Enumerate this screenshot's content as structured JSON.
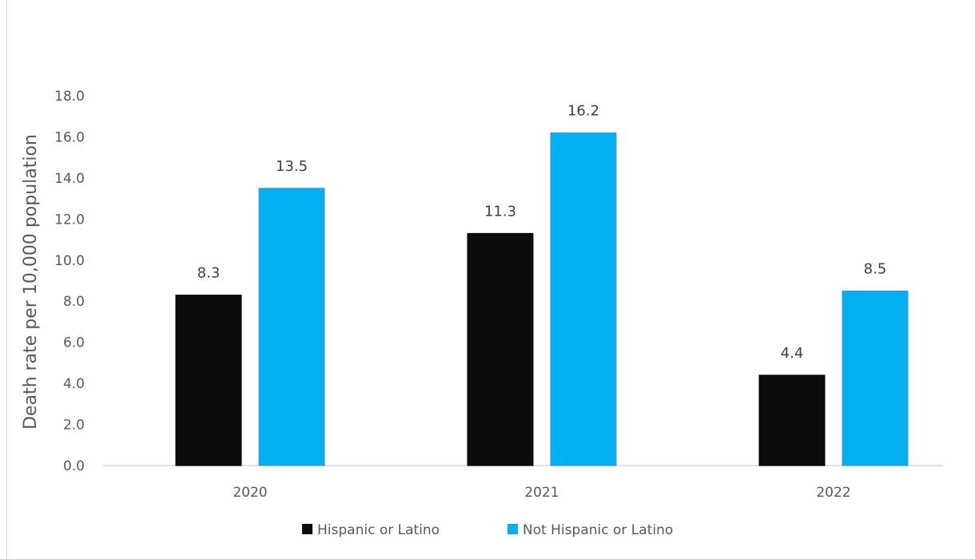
{
  "chart_data": {
    "type": "bar",
    "categories": [
      "2020",
      "2021",
      "2022"
    ],
    "series": [
      {
        "name": "Hispanic or Latino",
        "values": [
          8.3,
          11.3,
          4.4
        ],
        "color": "#0d0d0d"
      },
      {
        "name": "Not Hispanic or Latino",
        "values": [
          13.5,
          16.2,
          8.5
        ],
        "color": "#00b0f0"
      }
    ],
    "ylabel": "Death rate per 10,000 population",
    "xlabel": "",
    "title": "",
    "ylim": [
      0,
      18
    ],
    "yticks": [
      "0.0",
      "2.0",
      "4.0",
      "6.0",
      "8.0",
      "10.0",
      "12.0",
      "14.0",
      "16.0",
      "18.0"
    ],
    "data_labels": [
      [
        "8.3",
        "11.3",
        "4.4"
      ],
      [
        "13.5",
        "16.2",
        "8.5"
      ]
    ],
    "grid": false,
    "legend_position": "bottom"
  }
}
